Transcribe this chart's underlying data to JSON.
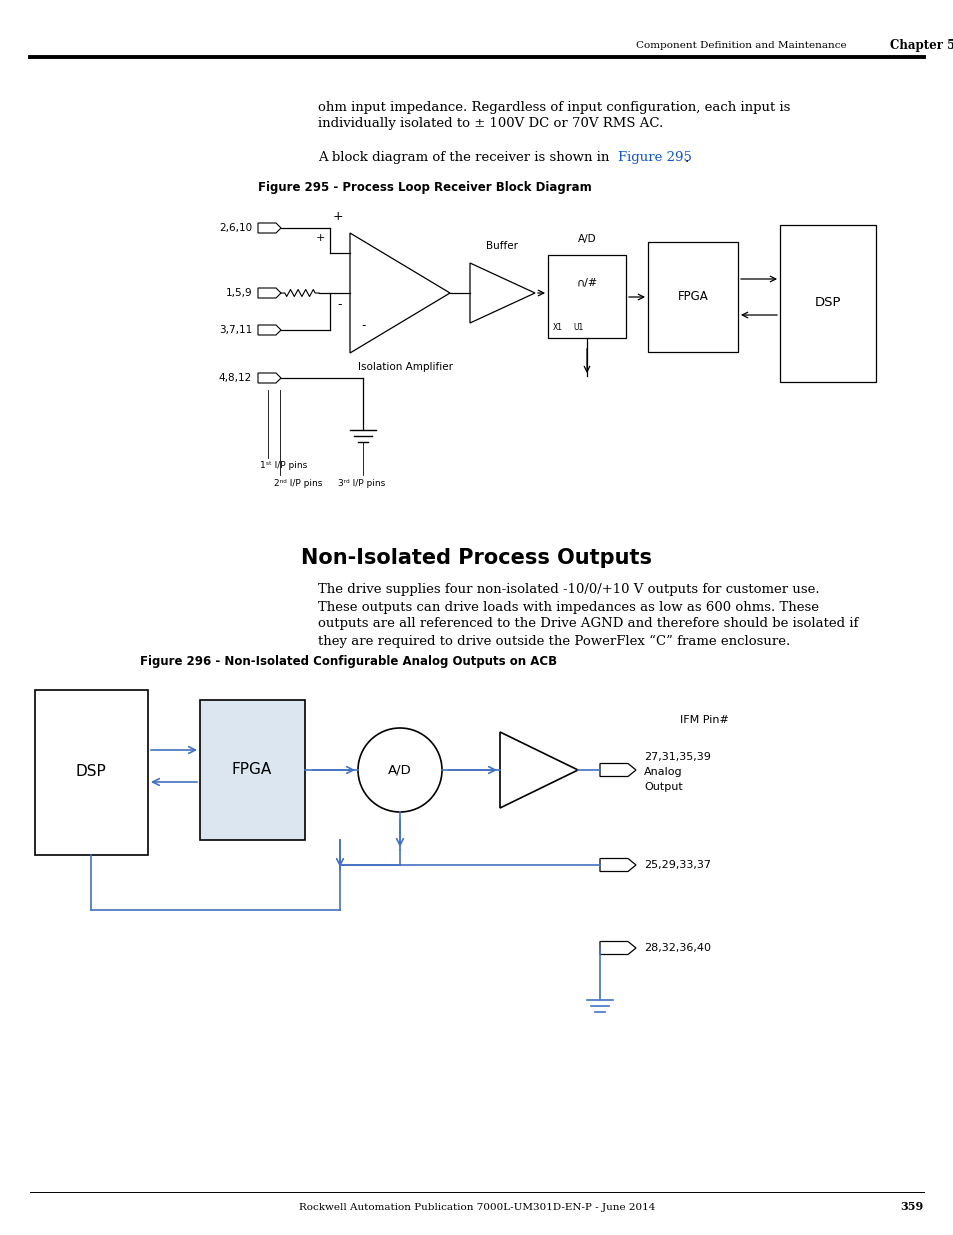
{
  "page_header_text": "Component Definition and Maintenance",
  "page_header_chapter": "Chapter 5",
  "page_footer_text": "Rockwell Automation Publication 7000L-UM301D-EN-P - June 2014",
  "page_footer_num": "359",
  "body_text_1a": "ohm input impedance. Regardless of input configuration, each input is",
  "body_text_1b": "individually isolated to ± 100V DC or 70V RMS AC.",
  "body_text_2a": "A block diagram of the receiver is shown in ",
  "body_text_2_link": "Figure 295",
  "body_text_2b": ".",
  "fig295_title": "Figure 295 - Process Loop Receiver Block Diagram",
  "fig296_title": "Figure 296 - Non-Isolated Configurable Analog Outputs on ACB",
  "section_title": "Non-Isolated Process Outputs",
  "body_text_3": [
    "The drive supplies four non-isolated -10/0/+10 V outputs for customer use.",
    "These outputs can drive loads with impedances as low as 600 ohms. These",
    "outputs are all referenced to the Drive AGND and therefore should be isolated if",
    "they are required to drive outside the PowerFlex “C” frame enclosure."
  ],
  "background_color": "#ffffff",
  "text_color": "#000000",
  "blue_link_color": "#1155cc",
  "box_fill_fpga2": "#dce6f1",
  "blue_line": "#4472c4",
  "diag_line": "#000000"
}
